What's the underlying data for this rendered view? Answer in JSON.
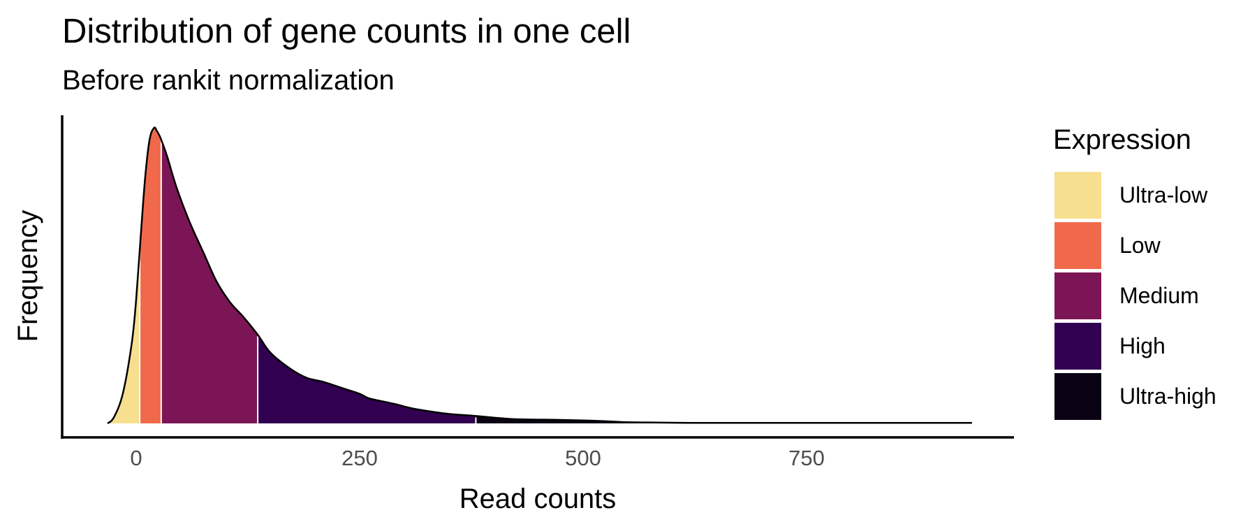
{
  "chart_data": {
    "type": "area",
    "title": "Distribution of gene counts in one cell",
    "subtitle": "Before rankit normalization",
    "xlabel": "Read counts",
    "ylabel": "Frequency",
    "x_ticks": [
      0,
      250,
      500,
      750
    ],
    "x_tick_labels": [
      "0",
      "250",
      "500",
      "750"
    ],
    "xlim": [
      -32,
      935
    ],
    "ylim": [
      0,
      1.0
    ],
    "y_ticks_shown": false,
    "grid": false,
    "legend": {
      "title": "Expression",
      "position": "right",
      "entries": [
        {
          "name": "Ultra-low",
          "color": "#F7DF90"
        },
        {
          "name": "Low",
          "color": "#F0694A"
        },
        {
          "name": "Medium",
          "color": "#7B1555"
        },
        {
          "name": "High",
          "color": "#310051"
        },
        {
          "name": "Ultra-high",
          "color": "#0A0214"
        }
      ]
    },
    "segments": [
      {
        "name": "Ultra-low",
        "x_start": -32,
        "x_end": 4
      },
      {
        "name": "Low",
        "x_start": 4,
        "x_end": 28
      },
      {
        "name": "Medium",
        "x_start": 28,
        "x_end": 136
      },
      {
        "name": "High",
        "x_start": 136,
        "x_end": 380
      },
      {
        "name": "Ultra-high",
        "x_start": 380,
        "x_end": 935
      }
    ],
    "density_points": {
      "x": [
        -32,
        -25,
        -15,
        -5,
        0,
        5,
        10,
        15,
        20,
        23,
        25,
        28,
        35,
        45,
        60,
        75,
        90,
        105,
        120,
        136,
        150,
        170,
        190,
        210,
        230,
        250,
        260,
        275,
        290,
        310,
        330,
        350,
        380,
        420,
        470,
        500,
        520,
        550,
        580,
        620,
        660,
        700,
        750,
        800,
        850,
        900,
        935
      ],
      "y": [
        0.0,
        0.02,
        0.1,
        0.27,
        0.42,
        0.63,
        0.83,
        0.96,
        1.0,
        0.99,
        0.98,
        0.96,
        0.9,
        0.8,
        0.68,
        0.58,
        0.48,
        0.41,
        0.36,
        0.3,
        0.24,
        0.19,
        0.155,
        0.14,
        0.12,
        0.1,
        0.085,
        0.075,
        0.065,
        0.05,
        0.04,
        0.032,
        0.025,
        0.015,
        0.012,
        0.01,
        0.008,
        0.004,
        0.003,
        0.002,
        0.002,
        0.002,
        0.002,
        0.002,
        0.002,
        0.002,
        0.002
      ]
    }
  }
}
